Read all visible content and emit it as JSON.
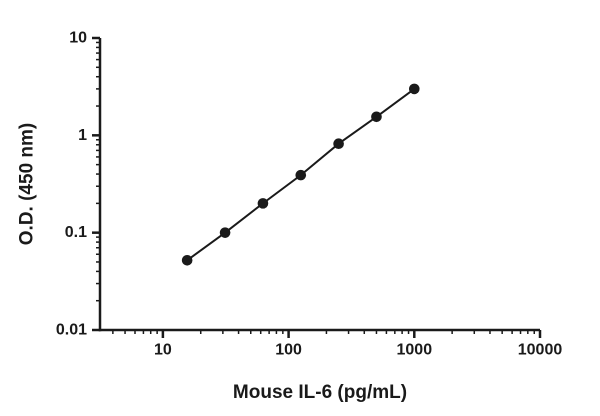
{
  "chart_data": {
    "type": "line",
    "markers": true,
    "title": "",
    "xlabel": "Mouse IL-6 (pg/mL)",
    "ylabel": "O.D. (450 nm)",
    "x_scale": "log",
    "y_scale": "log",
    "xlim": [
      3.16,
      10000
    ],
    "ylim": [
      0.01,
      10
    ],
    "x_ticks": [
      10,
      100,
      1000,
      10000
    ],
    "x_tick_labels": [
      "10",
      "100",
      "1000",
      "10000"
    ],
    "y_ticks": [
      0.01,
      0.1,
      1,
      10
    ],
    "y_tick_labels": [
      "0.01",
      "0.1",
      "1",
      "10"
    ],
    "x": [
      15.6,
      31.25,
      62.5,
      125,
      250,
      500,
      1000
    ],
    "y": [
      0.052,
      0.1,
      0.2,
      0.39,
      0.82,
      1.55,
      3.0
    ],
    "axis_color": "#1a1a1a",
    "line_color": "#1a1a1a",
    "marker_color": "#1a1a1a",
    "background": "#ffffff",
    "grid": "off",
    "legend": "none"
  }
}
